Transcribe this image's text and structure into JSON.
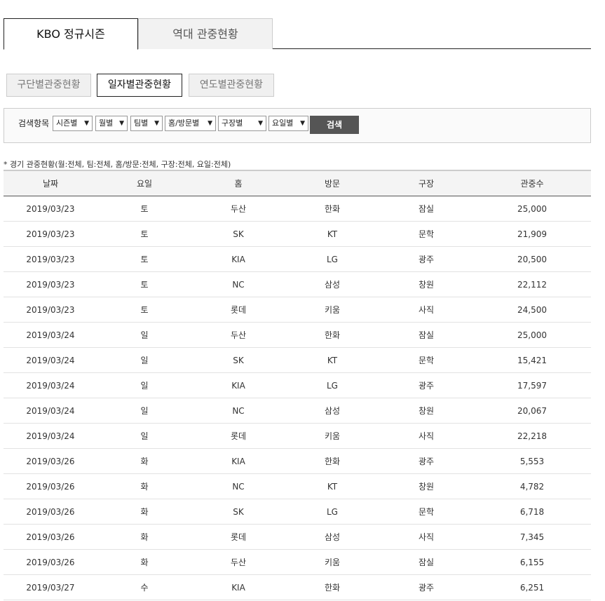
{
  "top_tabs": [
    "KBO 정규시즌",
    "역대 관중현황"
  ],
  "sub_tabs": [
    "구단별관중현황",
    "일자별관중현황",
    "연도별관중현황"
  ],
  "filter": {
    "label": "검색항목",
    "selects": [
      "시즌별",
      "월별",
      "팀별",
      "홈/방문별",
      "구장별",
      "요일별"
    ],
    "search_button": "검색"
  },
  "caption": "* 경기 관중현황(월:전체, 팀:전체, 홈/방문:전체, 구장:전체, 요일:전체)",
  "table": {
    "headers": [
      "날짜",
      "요일",
      "홈",
      "방문",
      "구장",
      "관중수"
    ],
    "rows": [
      [
        "2019/03/23",
        "토",
        "두산",
        "한화",
        "잠실",
        "25,000"
      ],
      [
        "2019/03/23",
        "토",
        "SK",
        "KT",
        "문학",
        "21,909"
      ],
      [
        "2019/03/23",
        "토",
        "KIA",
        "LG",
        "광주",
        "20,500"
      ],
      [
        "2019/03/23",
        "토",
        "NC",
        "삼성",
        "창원",
        "22,112"
      ],
      [
        "2019/03/23",
        "토",
        "롯데",
        "키움",
        "사직",
        "24,500"
      ],
      [
        "2019/03/24",
        "일",
        "두산",
        "한화",
        "잠실",
        "25,000"
      ],
      [
        "2019/03/24",
        "일",
        "SK",
        "KT",
        "문학",
        "15,421"
      ],
      [
        "2019/03/24",
        "일",
        "KIA",
        "LG",
        "광주",
        "17,597"
      ],
      [
        "2019/03/24",
        "일",
        "NC",
        "삼성",
        "창원",
        "20,067"
      ],
      [
        "2019/03/24",
        "일",
        "롯데",
        "키움",
        "사직",
        "22,218"
      ],
      [
        "2019/03/26",
        "화",
        "KIA",
        "한화",
        "광주",
        "5,553"
      ],
      [
        "2019/03/26",
        "화",
        "NC",
        "KT",
        "창원",
        "4,782"
      ],
      [
        "2019/03/26",
        "화",
        "SK",
        "LG",
        "문학",
        "6,718"
      ],
      [
        "2019/03/26",
        "화",
        "롯데",
        "삼성",
        "사직",
        "7,345"
      ],
      [
        "2019/03/26",
        "화",
        "두산",
        "키움",
        "잠실",
        "6,155"
      ],
      [
        "2019/03/27",
        "수",
        "KIA",
        "한화",
        "광주",
        "6,251"
      ]
    ]
  }
}
